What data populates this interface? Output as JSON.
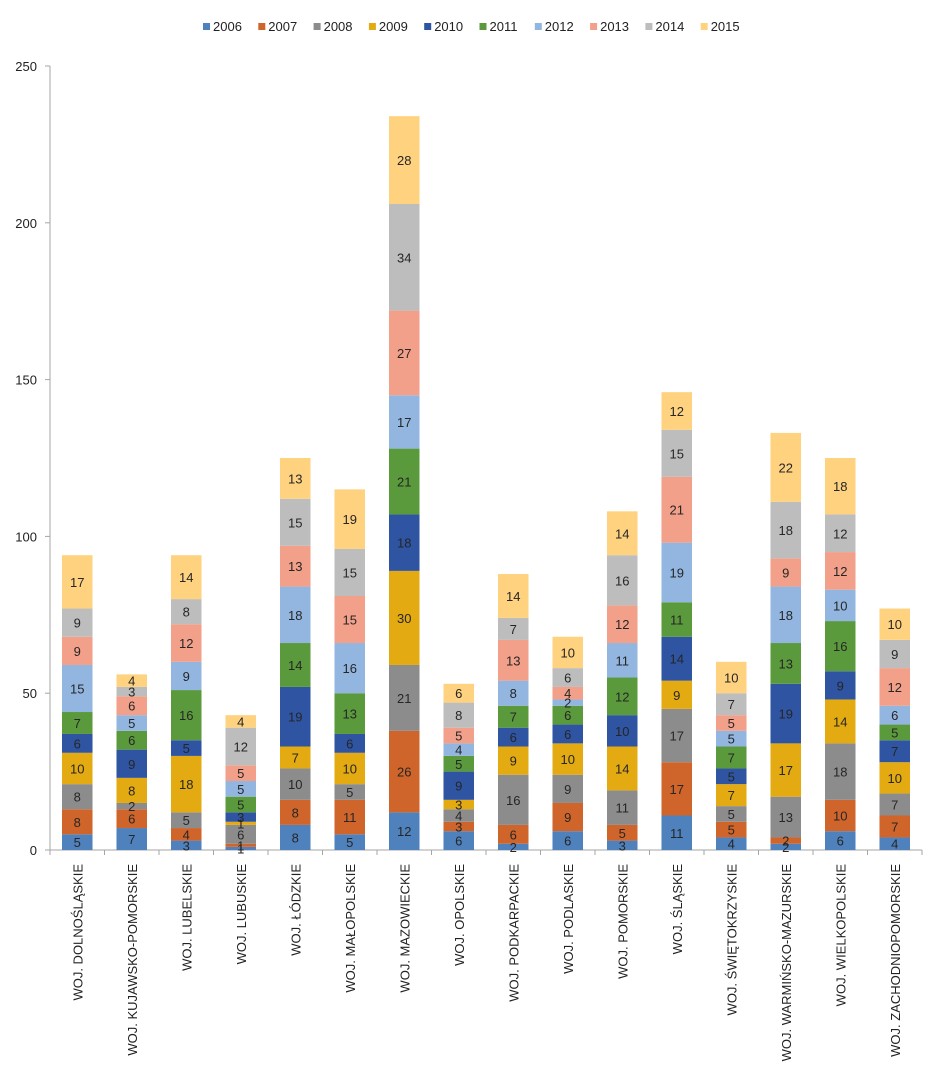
{
  "chart_data": {
    "type": "bar",
    "stacked": true,
    "title": "",
    "xlabel": "",
    "ylabel": "",
    "ylim": [
      0,
      250
    ],
    "yticks": [
      "0",
      "50",
      "100",
      "150",
      "200",
      "250"
    ],
    "legend_position": "top",
    "categories": [
      "WOJ. DOLNOŚLĄSKIE",
      "WOJ. KUJAWSKO-POMORSKIE",
      "WOJ. LUBELSKIE",
      "WOJ. LUBUSKIE",
      "WOJ. ŁÓDZKIE",
      "WOJ. MAŁOPOLSKIE",
      "WOJ. MAZOWIECKIE",
      "WOJ. OPOLSKIE",
      "WOJ. PODKARPACKIE",
      "WOJ. PODLASKIE",
      "WOJ. POMORSKIE",
      "WOJ. ŚLĄSKIE",
      "WOJ. ŚWIĘTOKRZYSKIE",
      "WOJ. WARMIŃSKO-MAZURSKIE",
      "WOJ. WIELKOPOLSKIE",
      "WOJ. ZACHODNIOPOMORSKIE"
    ],
    "series": [
      {
        "name": "2006",
        "color": "#4f81bd",
        "values": [
          5,
          7,
          3,
          1,
          8,
          5,
          12,
          6,
          2,
          6,
          3,
          11,
          4,
          2,
          6,
          4
        ]
      },
      {
        "name": "2007",
        "color": "#d0652b",
        "values": [
          8,
          6,
          4,
          1,
          8,
          11,
          26,
          3,
          6,
          9,
          5,
          17,
          5,
          2,
          10,
          7
        ]
      },
      {
        "name": "2008",
        "color": "#8c8c8c",
        "values": [
          8,
          2,
          5,
          6,
          10,
          5,
          21,
          4,
          16,
          9,
          11,
          17,
          5,
          13,
          18,
          7
        ]
      },
      {
        "name": "2009",
        "color": "#e3aa12",
        "values": [
          10,
          8,
          18,
          1,
          7,
          10,
          30,
          3,
          9,
          10,
          14,
          9,
          7,
          17,
          14,
          10
        ]
      },
      {
        "name": "2010",
        "color": "#2e54a2",
        "values": [
          6,
          9,
          5,
          3,
          19,
          6,
          18,
          9,
          6,
          6,
          10,
          14,
          5,
          19,
          9,
          7
        ]
      },
      {
        "name": "2011",
        "color": "#5b9a3c",
        "values": [
          7,
          6,
          16,
          5,
          14,
          13,
          21,
          5,
          7,
          6,
          12,
          11,
          7,
          13,
          16,
          5
        ]
      },
      {
        "name": "2012",
        "color": "#93b6e0",
        "values": [
          15,
          5,
          9,
          5,
          18,
          16,
          17,
          4,
          8,
          2,
          11,
          19,
          5,
          18,
          10,
          6
        ]
      },
      {
        "name": "2013",
        "color": "#f2a08a",
        "values": [
          9,
          6,
          12,
          5,
          13,
          15,
          27,
          5,
          13,
          4,
          12,
          21,
          5,
          9,
          12,
          12
        ]
      },
      {
        "name": "2014",
        "color": "#bdbdbd",
        "values": [
          9,
          3,
          8,
          12,
          15,
          15,
          34,
          8,
          7,
          6,
          16,
          15,
          7,
          18,
          12,
          9
        ]
      },
      {
        "name": "2015",
        "color": "#ffd27f",
        "values": [
          17,
          4,
          14,
          4,
          13,
          19,
          28,
          6,
          14,
          10,
          14,
          12,
          10,
          22,
          18,
          10
        ]
      }
    ]
  }
}
